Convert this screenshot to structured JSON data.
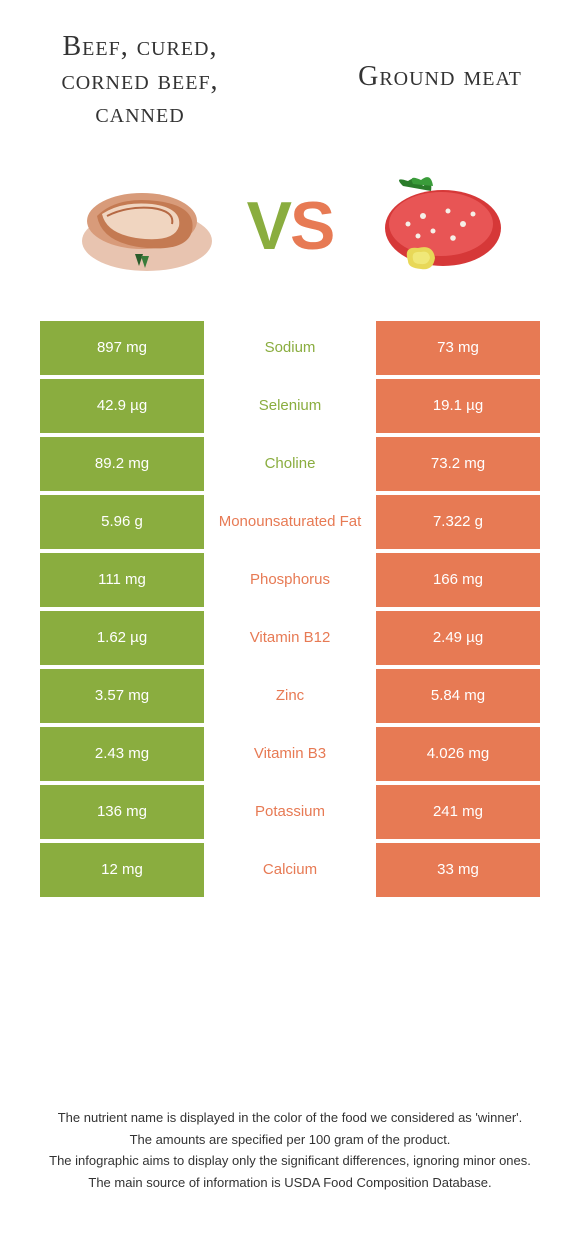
{
  "colors": {
    "left": "#8aad3f",
    "right": "#e77a54",
    "vs_left": "#8aad3f",
    "vs_right": "#e77a54"
  },
  "header": {
    "left_title": "Beef, cured, corned beef, canned",
    "right_title": "Ground meat"
  },
  "vs": "VS",
  "rows": [
    {
      "left": "897 mg",
      "label": "Sodium",
      "right": "73 mg",
      "winner": "left"
    },
    {
      "left": "42.9 µg",
      "label": "Selenium",
      "right": "19.1 µg",
      "winner": "left"
    },
    {
      "left": "89.2 mg",
      "label": "Choline",
      "right": "73.2 mg",
      "winner": "left"
    },
    {
      "left": "5.96 g",
      "label": "Monounsaturated Fat",
      "right": "7.322 g",
      "winner": "right"
    },
    {
      "left": "111 mg",
      "label": "Phosphorus",
      "right": "166 mg",
      "winner": "right"
    },
    {
      "left": "1.62 µg",
      "label": "Vitamin B12",
      "right": "2.49 µg",
      "winner": "right"
    },
    {
      "left": "3.57 mg",
      "label": "Zinc",
      "right": "5.84 mg",
      "winner": "right"
    },
    {
      "left": "2.43 mg",
      "label": "Vitamin B3",
      "right": "4.026 mg",
      "winner": "right"
    },
    {
      "left": "136 mg",
      "label": "Potassium",
      "right": "241 mg",
      "winner": "right"
    },
    {
      "left": "12 mg",
      "label": "Calcium",
      "right": "33 mg",
      "winner": "right"
    }
  ],
  "footnotes": [
    "The nutrient name is displayed in the color of the food we considered as 'winner'.",
    "The amounts are specified per 100 gram of the product.",
    "The infographic aims to display only the significant differences, ignoring minor ones.",
    "The main source of information is USDA Food Composition Database."
  ]
}
